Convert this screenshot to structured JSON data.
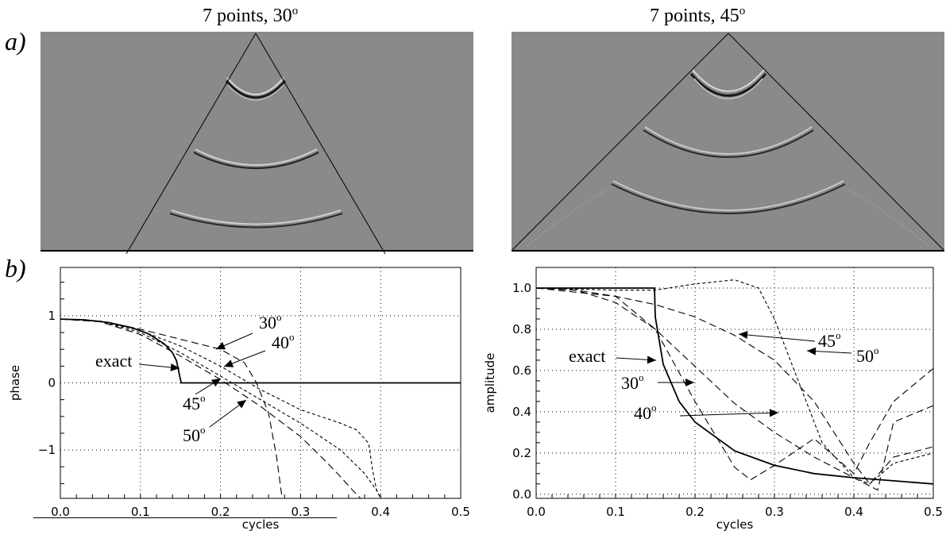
{
  "figure": {
    "label_a": "a)",
    "label_b": "b)",
    "top_left_title": "7 points, 30",
    "top_right_title": "7 points, 45",
    "degree_sup": "o"
  },
  "chart_data": [
    {
      "type": "line",
      "id": "phase",
      "xlabel": "cycles",
      "ylabel": "phase",
      "xlim": [
        0.0,
        0.5
      ],
      "ylim": [
        -1.72,
        1.72
      ],
      "xticks": [
        "0.0",
        "0.1",
        "0.2",
        "0.3",
        "0.4",
        "0.5"
      ],
      "yticks": [
        "1",
        "0",
        "−1"
      ],
      "grid": true,
      "series": [
        {
          "name": "exact",
          "style": "solid",
          "x": [
            0,
            0.03,
            0.06,
            0.09,
            0.11,
            0.13,
            0.14,
            0.145,
            0.15,
            0.151,
            0.2,
            0.3,
            0.4,
            0.5
          ],
          "y": [
            0.95,
            0.94,
            0.9,
            0.82,
            0.73,
            0.58,
            0.45,
            0.33,
            0.05,
            0,
            0,
            0,
            0,
            0
          ]
        },
        {
          "name": "30",
          "style": "longdash",
          "x": [
            0,
            0.05,
            0.1,
            0.15,
            0.2,
            0.23,
            0.245,
            0.26,
            0.27,
            0.277
          ],
          "y": [
            0.95,
            0.92,
            0.8,
            0.65,
            0.5,
            0.3,
            0.0,
            -0.45,
            -1.1,
            -1.72
          ]
        },
        {
          "name": "40",
          "style": "shortdash",
          "x": [
            0,
            0.05,
            0.1,
            0.15,
            0.2,
            0.25,
            0.3,
            0.35,
            0.37,
            0.385,
            0.39,
            0.395,
            0.4
          ],
          "y": [
            0.95,
            0.92,
            0.78,
            0.55,
            0.25,
            -0.1,
            -0.4,
            -0.6,
            -0.7,
            -0.9,
            -1.3,
            -1.6,
            -1.72
          ]
        },
        {
          "name": "45",
          "style": "shortdash",
          "x": [
            0,
            0.05,
            0.1,
            0.15,
            0.2,
            0.25,
            0.3,
            0.35,
            0.38,
            0.395,
            0.4
          ],
          "y": [
            0.95,
            0.92,
            0.75,
            0.45,
            0.1,
            -0.25,
            -0.6,
            -1.0,
            -1.35,
            -1.6,
            -1.72
          ]
        },
        {
          "name": "50",
          "style": "longdash",
          "x": [
            0,
            0.05,
            0.1,
            0.15,
            0.2,
            0.25,
            0.3,
            0.33,
            0.35,
            0.365,
            0.375
          ],
          "y": [
            0.95,
            0.91,
            0.72,
            0.4,
            0.05,
            -0.35,
            -0.8,
            -1.15,
            -1.4,
            -1.6,
            -1.72
          ]
        }
      ],
      "annotations": [
        {
          "text": "exact",
          "sup": ""
        },
        {
          "text": "30",
          "sup": "o"
        },
        {
          "text": "40",
          "sup": "o"
        },
        {
          "text": "45",
          "sup": "o"
        },
        {
          "text": "50",
          "sup": "o"
        }
      ]
    },
    {
      "type": "line",
      "id": "amplitude",
      "xlabel": "cycles",
      "ylabel": "amplitude",
      "xlim": [
        0.0,
        0.5
      ],
      "ylim": [
        -0.02,
        1.1
      ],
      "xticks": [
        "0.0",
        "0.1",
        "0.2",
        "0.3",
        "0.4",
        "0.5"
      ],
      "yticks": [
        "0.0",
        "0.2",
        "0.4",
        "0.6",
        "0.8",
        "1.0"
      ],
      "grid": true,
      "series": [
        {
          "name": "exact",
          "style": "solid",
          "x": [
            0,
            0.149,
            0.15,
            0.16,
            0.18,
            0.2,
            0.25,
            0.3,
            0.35,
            0.4,
            0.45,
            0.5
          ],
          "y": [
            1.0,
            1.0,
            0.86,
            0.63,
            0.45,
            0.35,
            0.21,
            0.14,
            0.1,
            0.08,
            0.065,
            0.05
          ]
        },
        {
          "name": "30",
          "style": "longdash",
          "x": [
            0,
            0.05,
            0.1,
            0.15,
            0.2,
            0.25,
            0.27,
            0.3,
            0.35,
            0.4,
            0.42,
            0.45,
            0.5
          ],
          "y": [
            1.0,
            0.99,
            0.96,
            0.8,
            0.45,
            0.13,
            0.07,
            0.14,
            0.27,
            0.1,
            0.25,
            0.45,
            0.61
          ]
        },
        {
          "name": "40",
          "style": "longdash",
          "x": [
            0,
            0.05,
            0.1,
            0.15,
            0.2,
            0.25,
            0.3,
            0.35,
            0.4,
            0.43,
            0.45,
            0.5
          ],
          "y": [
            1.0,
            0.99,
            0.93,
            0.8,
            0.62,
            0.44,
            0.3,
            0.18,
            0.08,
            0.02,
            0.35,
            0.43
          ]
        },
        {
          "name": "45",
          "style": "longdash",
          "x": [
            0,
            0.1,
            0.15,
            0.2,
            0.25,
            0.3,
            0.35,
            0.4,
            0.42,
            0.45,
            0.5
          ],
          "y": [
            1.0,
            0.96,
            0.92,
            0.86,
            0.77,
            0.65,
            0.45,
            0.15,
            0.05,
            0.18,
            0.23
          ]
        },
        {
          "name": "50",
          "style": "shortdash",
          "x": [
            0,
            0.1,
            0.15,
            0.2,
            0.25,
            0.28,
            0.3,
            0.33,
            0.36,
            0.4,
            0.42,
            0.45,
            0.5
          ],
          "y": [
            1.0,
            0.99,
            0.99,
            1.02,
            1.04,
            1.0,
            0.85,
            0.55,
            0.25,
            0.08,
            0.05,
            0.15,
            0.2
          ]
        }
      ],
      "annotations": [
        {
          "text": "exact",
          "sup": ""
        },
        {
          "text": "30",
          "sup": "o"
        },
        {
          "text": "40",
          "sup": "o"
        },
        {
          "text": "45",
          "sup": "o"
        },
        {
          "text": "50",
          "sup": "o"
        }
      ]
    }
  ]
}
